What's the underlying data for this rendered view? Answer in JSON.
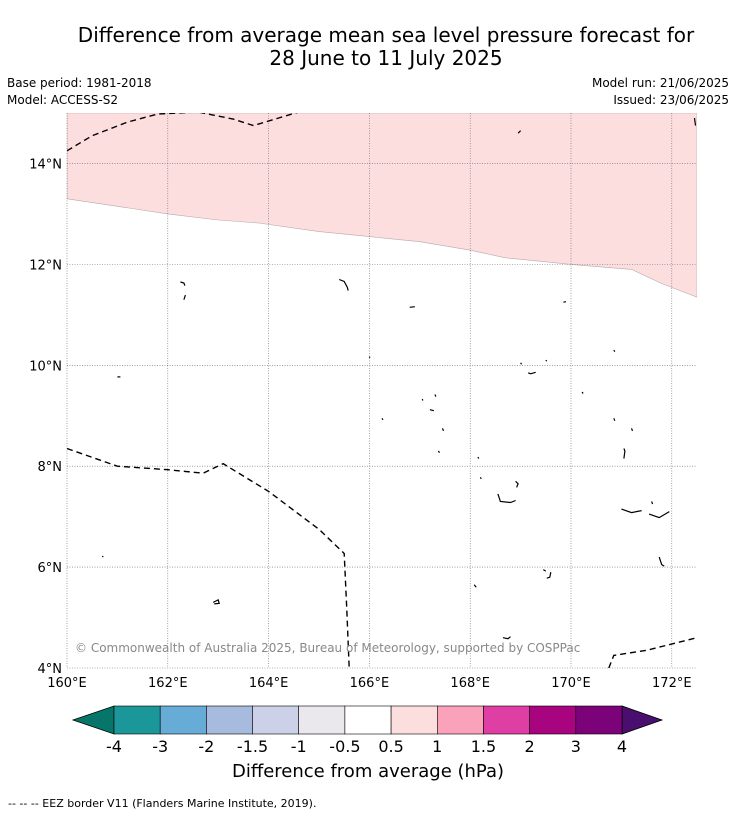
{
  "title_line1": "Difference from average mean sea level pressure forecast for",
  "title_line2": "28 June to 11 July 2025",
  "base_period": "Base period: 1981-2018",
  "model": "Model: ACCESS-S2",
  "model_run": "Model run: 21/06/2025",
  "issued": "Issued: 23/06/2025",
  "copyright": "© Commonwealth of Australia 2025, Bureau of Meteorology, supported by COSPPac",
  "map": {
    "lon_range": [
      160,
      172.5
    ],
    "lat_range": [
      4,
      15
    ],
    "lon_ticks": [
      {
        "value": 160,
        "label": "160°E"
      },
      {
        "value": 162,
        "label": "162°E"
      },
      {
        "value": 164,
        "label": "164°E"
      },
      {
        "value": 166,
        "label": "166°E"
      },
      {
        "value": 168,
        "label": "168°E"
      },
      {
        "value": 170,
        "label": "170°E"
      },
      {
        "value": 172,
        "label": "172°E"
      }
    ],
    "lat_ticks": [
      {
        "value": 4,
        "label": "4°N"
      },
      {
        "value": 6,
        "label": "6°N"
      },
      {
        "value": 8,
        "label": "8°N"
      },
      {
        "value": 10,
        "label": "10°N"
      },
      {
        "value": 12,
        "label": "12°N"
      },
      {
        "value": 14,
        "label": "14°N"
      }
    ],
    "grid": "dotted",
    "anomaly_region": {
      "category": "0.5 to 1",
      "color": "#fddedf",
      "lower_boundary": [
        [
          160,
          13.3
        ],
        [
          161,
          13.15
        ],
        [
          162,
          13.0
        ],
        [
          163,
          12.88
        ],
        [
          163.8,
          12.82
        ],
        [
          165,
          12.65
        ],
        [
          166,
          12.55
        ],
        [
          167,
          12.45
        ],
        [
          168,
          12.28
        ],
        [
          168.7,
          12.13
        ],
        [
          169.5,
          12.05
        ],
        [
          170,
          12.0
        ],
        [
          171.2,
          11.9
        ],
        [
          171.8,
          11.62
        ],
        [
          172.5,
          11.35
        ]
      ]
    },
    "eez_borders": [
      [
        [
          160,
          14.25
        ],
        [
          160.5,
          14.55
        ],
        [
          161.2,
          14.82
        ],
        [
          161.8,
          14.98
        ],
        [
          162.6,
          15.02
        ],
        [
          163.3,
          14.88
        ],
        [
          163.7,
          14.75
        ],
        [
          164.2,
          14.9
        ],
        [
          164.6,
          15.02
        ]
      ],
      [
        [
          160,
          8.35
        ],
        [
          161,
          8.0
        ],
        [
          162,
          7.93
        ],
        [
          162.7,
          7.86
        ],
        [
          163.1,
          8.05
        ],
        [
          164,
          7.5
        ],
        [
          165,
          6.75
        ],
        [
          165.5,
          6.27
        ],
        [
          165.55,
          5.2
        ],
        [
          165.6,
          4.0
        ]
      ],
      [
        [
          170.75,
          4.0
        ],
        [
          170.85,
          4.25
        ],
        [
          171.5,
          4.35
        ],
        [
          172.5,
          4.6
        ]
      ]
    ],
    "islands": [
      [
        [
          161.0,
          9.77
        ],
        [
          161.06,
          9.77
        ]
      ],
      [
        [
          162.25,
          11.65
        ],
        [
          162.32,
          11.63
        ],
        [
          162.34,
          11.58
        ]
      ],
      [
        [
          162.35,
          11.39
        ],
        [
          162.32,
          11.3
        ]
      ],
      [
        [
          165.4,
          11.7
        ],
        [
          165.5,
          11.66
        ],
        [
          165.56,
          11.55
        ],
        [
          165.58,
          11.48
        ]
      ],
      [
        [
          166.0,
          10.17
        ],
        [
          166.01,
          10.15
        ]
      ],
      [
        [
          166.8,
          11.15
        ],
        [
          166.9,
          11.16
        ]
      ],
      [
        [
          166.25,
          8.95
        ],
        [
          166.27,
          8.92
        ]
      ],
      [
        [
          167.05,
          9.33
        ],
        [
          167.06,
          9.3
        ]
      ],
      [
        [
          167.3,
          9.42
        ],
        [
          167.32,
          9.38
        ]
      ],
      [
        [
          167.2,
          9.12
        ],
        [
          167.28,
          9.1
        ]
      ],
      [
        [
          167.45,
          8.75
        ],
        [
          167.47,
          8.7
        ]
      ],
      [
        [
          167.37,
          8.3
        ],
        [
          167.39,
          8.27
        ]
      ],
      [
        [
          168.15,
          8.18
        ],
        [
          168.17,
          8.15
        ]
      ],
      [
        [
          168.2,
          7.78
        ],
        [
          168.22,
          7.75
        ]
      ],
      [
        [
          168.55,
          7.45
        ],
        [
          168.6,
          7.3
        ],
        [
          168.8,
          7.28
        ],
        [
          168.9,
          7.32
        ]
      ],
      [
        [
          168.92,
          7.58
        ],
        [
          168.95,
          7.65
        ],
        [
          168.9,
          7.7
        ]
      ],
      [
        [
          168.95,
          14.6
        ],
        [
          169.0,
          14.65
        ]
      ],
      [
        [
          169.0,
          10.05
        ],
        [
          169.02,
          10.02
        ]
      ],
      [
        [
          169.15,
          9.85
        ],
        [
          169.2,
          9.83
        ],
        [
          169.3,
          9.86
        ]
      ],
      [
        [
          169.5,
          10.1
        ],
        [
          169.52,
          10.08
        ]
      ],
      [
        [
          169.85,
          11.25
        ],
        [
          169.9,
          11.26
        ]
      ],
      [
        [
          170.22,
          9.47
        ],
        [
          170.24,
          9.44
        ]
      ],
      [
        [
          170.85,
          10.3
        ],
        [
          170.87,
          10.27
        ]
      ],
      [
        [
          170.85,
          8.95
        ],
        [
          170.87,
          8.9
        ]
      ],
      [
        [
          171.05,
          8.35
        ],
        [
          171.07,
          8.3
        ],
        [
          171.05,
          8.15
        ]
      ],
      [
        [
          171.2,
          8.75
        ],
        [
          171.22,
          8.7
        ]
      ],
      [
        [
          171.0,
          7.15
        ],
        [
          171.2,
          7.08
        ],
        [
          171.4,
          7.12
        ]
      ],
      [
        [
          171.6,
          7.3
        ],
        [
          171.62,
          7.25
        ]
      ],
      [
        [
          171.55,
          7.05
        ],
        [
          171.75,
          6.98
        ],
        [
          171.95,
          7.1
        ]
      ],
      [
        [
          171.75,
          6.2
        ],
        [
          171.8,
          6.05
        ],
        [
          171.85,
          6.02
        ]
      ],
      [
        [
          169.45,
          5.95
        ],
        [
          169.5,
          5.92
        ]
      ],
      [
        [
          169.6,
          5.9
        ],
        [
          169.58,
          5.8
        ],
        [
          169.52,
          5.78
        ]
      ],
      [
        [
          168.08,
          5.65
        ],
        [
          168.12,
          5.6
        ]
      ],
      [
        [
          168.65,
          4.6
        ],
        [
          168.75,
          4.58
        ],
        [
          168.8,
          4.62
        ]
      ],
      [
        [
          160.7,
          6.22
        ],
        [
          160.72,
          6.2
        ]
      ],
      [
        [
          162.9,
          5.3
        ],
        [
          163.0,
          5.35
        ],
        [
          163.02,
          5.28
        ],
        [
          162.92,
          5.27
        ]
      ],
      [
        [
          172.45,
          14.9
        ],
        [
          172.47,
          14.75
        ]
      ]
    ]
  },
  "colorbar": {
    "title": "Difference from average (hPa)",
    "under_color": "#06766a",
    "over_color": "#4a0f6e",
    "boxes": [
      {
        "from": "-4",
        "to": "-3",
        "color": "#1c9799"
      },
      {
        "from": "-3",
        "to": "-2",
        "color": "#67acd6"
      },
      {
        "from": "-2",
        "to": "-1.5",
        "color": "#a6bbdd"
      },
      {
        "from": "-1.5",
        "to": "-1",
        "color": "#ccd1e8"
      },
      {
        "from": "-1",
        "to": "-0.5",
        "color": "#ebe8ed"
      },
      {
        "from": "-0.5",
        "to": "0.5",
        "color": "#ffffff"
      },
      {
        "from": "0.5",
        "to": "1",
        "color": "#fddedf"
      },
      {
        "from": "1",
        "to": "1.5",
        "color": "#fba2bb"
      },
      {
        "from": "1.5",
        "to": "2",
        "color": "#df3ea5"
      },
      {
        "from": "2",
        "to": "3",
        "color": "#a9047f"
      },
      {
        "from": "3",
        "to": "4",
        "color": "#7c027a"
      }
    ],
    "labels": [
      "-4",
      "-3",
      "-2",
      "-1.5",
      "-1",
      "-0.5",
      "0.5",
      "1",
      "1.5",
      "2",
      "3",
      "4"
    ]
  },
  "footer_legend": "--  --  -- EEZ border V11 (Flanders Marine Institute, 2019)."
}
